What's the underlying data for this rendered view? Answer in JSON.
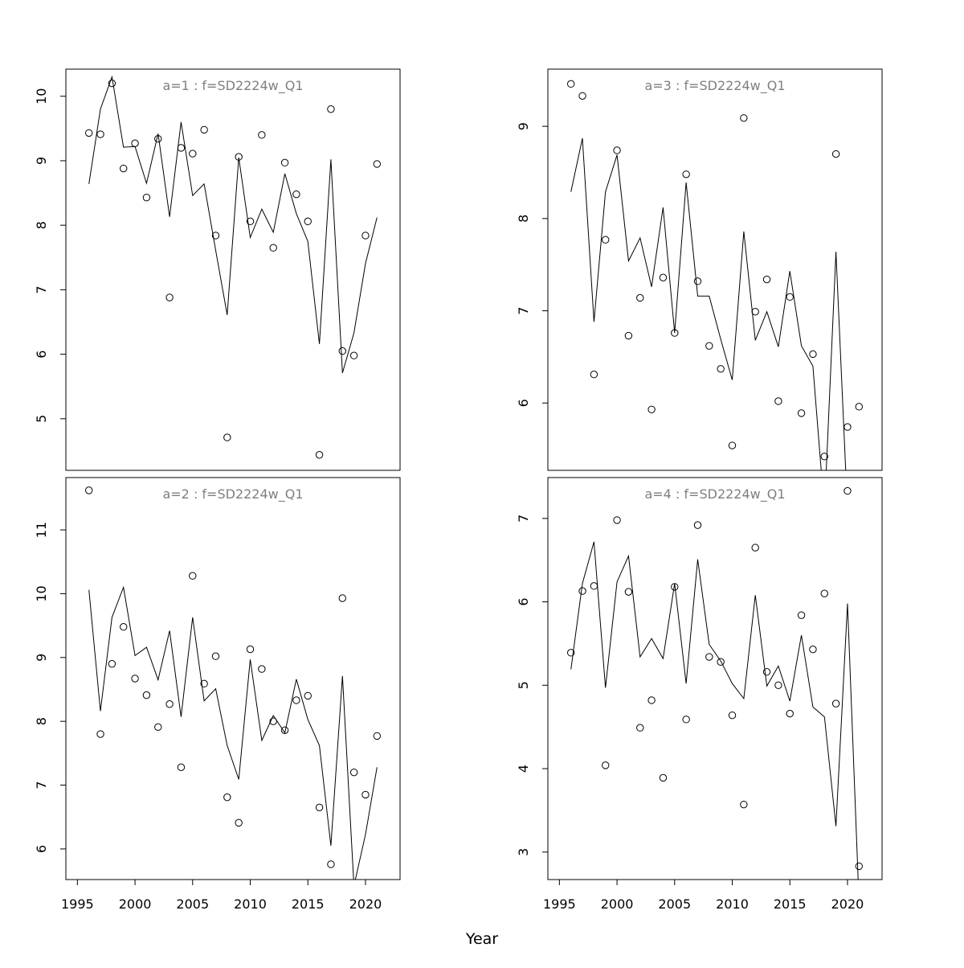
{
  "figure": {
    "xlabel": "Year"
  },
  "chart_data": [
    {
      "type": "scatter+line",
      "title": "a=1  :  f=SD2224w_Q1",
      "xlim": [
        1994,
        2023
      ],
      "ylim": [
        4.2,
        10.42
      ],
      "xticks": [
        1995,
        2000,
        2005,
        2010,
        2015,
        2020
      ],
      "yticks": [
        5,
        6,
        7,
        8,
        9,
        10
      ],
      "show_xticks": false,
      "years": [
        1996,
        1997,
        1998,
        1999,
        2000,
        2001,
        2002,
        2003,
        2004,
        2005,
        2006,
        2007,
        2008,
        2009,
        2010,
        2011,
        2012,
        2013,
        2014,
        2015,
        2016,
        2017,
        2018,
        2019,
        2020,
        2021
      ],
      "series": [
        {
          "style": "points",
          "values": [
            9.43,
            9.41,
            10.2,
            8.88,
            9.27,
            8.43,
            9.34,
            6.88,
            9.2,
            9.11,
            9.48,
            7.84,
            4.71,
            9.06,
            8.06,
            9.4,
            7.65,
            8.97,
            8.48,
            8.06,
            4.44,
            9.8,
            6.05,
            5.98,
            7.84,
            8.95
          ]
        },
        {
          "style": "line",
          "values": [
            8.64,
            9.8,
            10.3,
            9.21,
            9.22,
            8.65,
            9.42,
            8.13,
            9.6,
            8.46,
            8.64,
            7.61,
            6.61,
            9.05,
            7.81,
            8.25,
            7.89,
            8.8,
            8.18,
            7.75,
            6.16,
            9.02,
            5.71,
            6.33,
            7.41,
            8.12
          ]
        }
      ]
    },
    {
      "type": "scatter+line",
      "title": "a=3  :  f=SD2224w_Q1",
      "xlim": [
        1994,
        2023
      ],
      "ylim": [
        5.27,
        9.62
      ],
      "xticks": [
        1995,
        2000,
        2005,
        2010,
        2015,
        2020
      ],
      "yticks": [
        6,
        7,
        8,
        9
      ],
      "show_xticks": false,
      "years": [
        1996,
        1997,
        1998,
        1999,
        2000,
        2001,
        2002,
        2003,
        2004,
        2005,
        2006,
        2007,
        2008,
        2009,
        2010,
        2011,
        2012,
        2013,
        2014,
        2015,
        2016,
        2017,
        2018,
        2019,
        2020,
        2021
      ],
      "series": [
        {
          "style": "points",
          "values": [
            9.46,
            9.33,
            6.31,
            7.77,
            8.74,
            6.73,
            7.14,
            5.93,
            7.36,
            6.76,
            8.48,
            7.32,
            6.62,
            6.37,
            5.54,
            9.09,
            6.99,
            7.34,
            6.02,
            7.15,
            5.89,
            6.53,
            5.42,
            8.7,
            5.74,
            5.96
          ]
        },
        {
          "style": "line",
          "values": [
            8.29,
            8.87,
            6.88,
            8.29,
            8.69,
            7.54,
            7.79,
            7.26,
            8.12,
            6.76,
            8.39,
            7.16,
            7.16,
            6.69,
            6.25,
            7.86,
            6.68,
            6.99,
            6.61,
            7.43,
            6.62,
            6.4,
            4.83,
            7.64,
            4.83,
            4.83
          ]
        }
      ]
    },
    {
      "type": "scatter+line",
      "title": "a=2  :  f=SD2224w_Q1",
      "xlim": [
        1994,
        2023
      ],
      "ylim": [
        5.52,
        11.82
      ],
      "xticks": [
        1995,
        2000,
        2005,
        2010,
        2015,
        2020
      ],
      "yticks": [
        6,
        7,
        8,
        9,
        10,
        11
      ],
      "show_xticks": true,
      "years": [
        1996,
        1997,
        1998,
        1999,
        2000,
        2001,
        2002,
        2003,
        2004,
        2005,
        2006,
        2007,
        2008,
        2009,
        2010,
        2011,
        2012,
        2013,
        2014,
        2015,
        2016,
        2017,
        2018,
        2019,
        2020,
        2021
      ],
      "series": [
        {
          "style": "points",
          "values": [
            11.62,
            7.8,
            8.9,
            9.48,
            8.67,
            8.41,
            7.91,
            8.27,
            7.28,
            10.28,
            8.59,
            9.02,
            6.81,
            6.41,
            9.13,
            8.82,
            8.0,
            7.86,
            8.33,
            8.4,
            6.65,
            5.76,
            9.93,
            7.2,
            6.85,
            7.77
          ]
        },
        {
          "style": "line",
          "values": [
            10.06,
            8.16,
            9.63,
            10.1,
            9.03,
            9.16,
            8.65,
            9.42,
            8.07,
            9.63,
            8.32,
            8.51,
            7.62,
            7.09,
            8.97,
            7.7,
            8.09,
            7.82,
            8.66,
            8.03,
            7.62,
            6.05,
            8.71,
            5.42,
            6.23,
            7.28
          ]
        }
      ]
    },
    {
      "type": "scatter+line",
      "title": "a=4  :  f=SD2224w_Q1",
      "xlim": [
        1994,
        2023
      ],
      "ylim": [
        2.67,
        7.49
      ],
      "xticks": [
        1995,
        2000,
        2005,
        2010,
        2015,
        2020
      ],
      "yticks": [
        3,
        4,
        5,
        6,
        7
      ],
      "show_xticks": true,
      "years": [
        1996,
        1997,
        1998,
        1999,
        2000,
        2001,
        2002,
        2003,
        2004,
        2005,
        2006,
        2007,
        2008,
        2009,
        2010,
        2011,
        2012,
        2013,
        2014,
        2015,
        2016,
        2017,
        2018,
        2019,
        2020,
        2021
      ],
      "series": [
        {
          "style": "points",
          "values": [
            5.39,
            6.13,
            6.19,
            4.04,
            6.98,
            6.12,
            4.49,
            4.82,
            3.89,
            6.18,
            4.59,
            6.92,
            5.34,
            5.28,
            4.64,
            3.57,
            6.65,
            5.16,
            5.0,
            4.66,
            5.84,
            5.43,
            6.1,
            4.78,
            7.33,
            2.83
          ]
        },
        {
          "style": "line",
          "values": [
            5.19,
            6.22,
            6.72,
            4.97,
            6.24,
            6.55,
            5.34,
            5.56,
            5.32,
            6.22,
            5.02,
            6.51,
            5.49,
            5.29,
            5.02,
            4.84,
            6.08,
            4.99,
            5.23,
            4.81,
            5.6,
            4.74,
            4.62,
            3.31,
            5.98,
            2.4
          ]
        }
      ]
    }
  ]
}
